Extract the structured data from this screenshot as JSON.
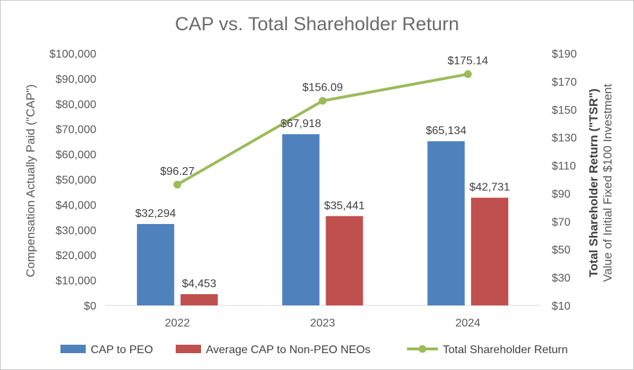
{
  "chart_data": {
    "type": "bar+line",
    "title": "CAP vs. Total Shareholder Return",
    "categories": [
      "2022",
      "2023",
      "2024"
    ],
    "series": [
      {
        "name": "CAP to PEO",
        "type": "bar",
        "axis": "left",
        "color": "#4f81bd",
        "values": [
          32294,
          67918,
          65134
        ],
        "labels": [
          "$32,294",
          "$67,918",
          "$65,134"
        ]
      },
      {
        "name": "Average CAP to Non-PEO NEOs",
        "type": "bar",
        "axis": "left",
        "color": "#c0504d",
        "values": [
          4453,
          35441,
          42731
        ],
        "labels": [
          "$4,453",
          "$35,441",
          "$42,731"
        ]
      },
      {
        "name": "Total Shareholder Return",
        "type": "line",
        "axis": "right",
        "color": "#9bbb59",
        "values": [
          96.27,
          156.09,
          175.14
        ],
        "labels": [
          "$96.27",
          "$156.09",
          "$175.14"
        ]
      }
    ],
    "y_left": {
      "label": "Compensation Actually Paid (\"CAP\")",
      "lim": [
        0,
        100000
      ],
      "ticks": [
        0,
        10000,
        20000,
        30000,
        40000,
        50000,
        60000,
        70000,
        80000,
        90000,
        100000
      ],
      "tick_labels": [
        "$0",
        "$10,000",
        "$20,000",
        "$30,000",
        "$40,000",
        "$50,000",
        "$60,000",
        "$70,000",
        "$80,000",
        "$90,000",
        "$100,000"
      ]
    },
    "y_right": {
      "label_line1": "Total Shareholder Return (\"TSR\")",
      "label_line2": "Value of Initial Fixed $100 Investment",
      "lim": [
        10,
        190
      ],
      "ticks": [
        10,
        30,
        50,
        70,
        90,
        110,
        130,
        150,
        170,
        190
      ],
      "tick_labels": [
        "$10",
        "$30",
        "$50",
        "$70",
        "$90",
        "$110",
        "$130",
        "$150",
        "$170",
        "$190"
      ]
    },
    "grid": false,
    "legend": "bottom"
  }
}
